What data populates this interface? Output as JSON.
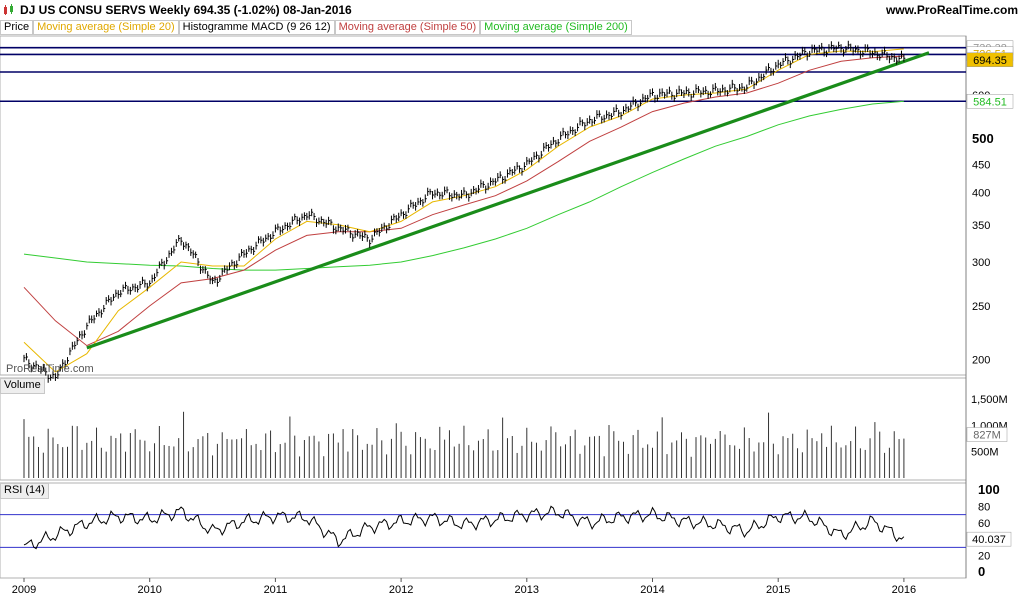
{
  "header": {
    "title": "DJ US CONSU SERVS   Weekly   694.35 (-1.02%)   08-Jan-2016",
    "site": "www.ProRealTime.com"
  },
  "legend": {
    "price": "Price",
    "ma20": "Moving average (Simple 20)",
    "macd": "Histogramme MACD (9 26 12)",
    "ma50": "Moving average (Simple 50)",
    "ma200": "Moving average (Simple 200)"
  },
  "watermark": "ProRealTime.com",
  "colors": {
    "price": "#000000",
    "ma20": "#e8b800",
    "ma50": "#c04040",
    "ma200": "#33cc33",
    "trendline": "#1a8c1a",
    "hline": "#000066",
    "rsi_line": "#000000",
    "rsi_band": "#3333cc",
    "rsi_fill": "#c8a0a0",
    "last_price_bg": "#f0c000"
  },
  "panels": {
    "volume_label": "Volume",
    "rsi_label": "RSI (14)"
  },
  "price_axis": {
    "ticks": [
      "200",
      "250",
      "300",
      "350",
      "400",
      "450",
      "500",
      "600"
    ],
    "big_tick": "500",
    "tags": {
      "ma20_value": "726.51",
      "last_value": "694.35",
      "ma200_value": "584.51",
      "top_value": "730.38"
    }
  },
  "volume_axis": {
    "ticks": [
      "1,500M",
      "1,000M",
      "500M"
    ],
    "current": "827M"
  },
  "rsi_axis": {
    "ticks": [
      "100",
      "80",
      "60",
      "40",
      "20",
      "0"
    ],
    "current": "40.037"
  },
  "x_axis": {
    "labels": [
      "2009",
      "2010",
      "2011",
      "2012",
      "2013",
      "2014",
      "2015",
      "2016"
    ]
  },
  "chart_data": {
    "type": "line",
    "scale": "log",
    "title": "DJ US CONSU SERVS",
    "period": "Weekly",
    "last_date": "08-Jan-2016",
    "last_close": 694.35,
    "change_pct": -1.02,
    "ylim": [
      190,
      760
    ],
    "horizontal_lines": [
      730,
      710,
      660,
      584.51
    ],
    "trendline": {
      "x": [
        2009.5,
        2016.2
      ],
      "y": [
        210,
        715
      ]
    },
    "dates": [
      2009.0,
      2009.25,
      2009.5,
      2009.75,
      2010.0,
      2010.25,
      2010.5,
      2010.75,
      2011.0,
      2011.25,
      2011.5,
      2011.75,
      2012.0,
      2012.25,
      2012.5,
      2012.75,
      2013.0,
      2013.25,
      2013.5,
      2013.75,
      2014.0,
      2014.25,
      2014.5,
      2014.75,
      2015.0,
      2015.25,
      2015.5,
      2015.75,
      2016.0
    ],
    "series": [
      {
        "name": "Price",
        "values": [
          200,
          185,
          230,
          265,
          275,
          330,
          275,
          310,
          340,
          365,
          345,
          330,
          365,
          400,
          395,
          420,
          450,
          500,
          540,
          560,
          600,
          605,
          610,
          620,
          680,
          720,
          730,
          715,
          694.35
        ]
      },
      {
        "name": "Moving average (Simple 20)",
        "values": [
          215,
          190,
          205,
          245,
          270,
          300,
          295,
          295,
          330,
          355,
          350,
          340,
          355,
          385,
          395,
          410,
          440,
          485,
          525,
          550,
          590,
          600,
          605,
          615,
          665,
          710,
          720,
          718,
          726.51
        ]
      },
      {
        "name": "Moving average (Simple 50)",
        "values": [
          270,
          235,
          212,
          225,
          250,
          275,
          280,
          290,
          315,
          335,
          340,
          340,
          345,
          365,
          380,
          395,
          420,
          455,
          495,
          525,
          560,
          580,
          595,
          605,
          630,
          665,
          690,
          700,
          705
        ]
      },
      {
        "name": "Moving average (Simple 200)",
        "values": [
          310,
          305,
          300,
          298,
          296,
          295,
          292,
          290,
          290,
          292,
          294,
          296,
          300,
          308,
          318,
          330,
          345,
          365,
          385,
          410,
          435,
          460,
          485,
          505,
          530,
          550,
          565,
          578,
          584.51
        ]
      }
    ],
    "volume": {
      "unit": "M",
      "ticks": [
        500,
        1000,
        1500
      ],
      "current": 827
    },
    "rsi": {
      "period": 14,
      "levels": [
        30,
        70
      ],
      "dates": [
        2009.0,
        2009.25,
        2009.5,
        2009.75,
        2010.0,
        2010.25,
        2010.5,
        2010.75,
        2011.0,
        2011.25,
        2011.5,
        2011.75,
        2012.0,
        2012.25,
        2012.5,
        2012.75,
        2013.0,
        2013.25,
        2013.5,
        2013.75,
        2014.0,
        2014.25,
        2014.5,
        2014.75,
        2015.0,
        2015.25,
        2015.5,
        2015.75,
        2016.0
      ],
      "values": [
        30,
        45,
        60,
        68,
        64,
        74,
        50,
        62,
        68,
        66,
        38,
        55,
        62,
        66,
        58,
        64,
        70,
        73,
        60,
        67,
        70,
        62,
        58,
        50,
        68,
        66,
        45,
        62,
        40.037
      ]
    }
  }
}
